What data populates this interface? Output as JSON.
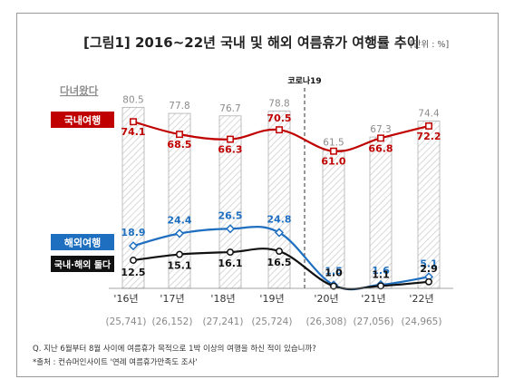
{
  "title": {
    "main": "[그림1] 2016~22년 국내 및 해외 여름휴가 여행률 추이",
    "unit": "[단위 : %]"
  },
  "labels": {
    "covid": "코로나19",
    "visited": "다녀왔다",
    "domestic": "국내여행",
    "overseas": "해외여행",
    "both": "국내·해외 둘다"
  },
  "footnotes": {
    "question": "Q. 지난 6월부터 8월 사이에 여름휴가 목적으로 1박 이상의 여행을 하신 적이 있습니까?",
    "source": "*출처 : 컨슈머인사이트 '연례 여름휴가만족도 조사'"
  },
  "colors": {
    "bar_stroke": "#b0b0b0",
    "bar_hatch": "#c8c8c8",
    "bar_label": "#8c8c8c",
    "domestic": "#c00000",
    "overseas": "#1f6fc0",
    "both": "#111111"
  },
  "chart_data": {
    "type": "bar+line",
    "categories": [
      "'16년",
      "'17년",
      "'18년",
      "'19년",
      "'20년",
      "'21년",
      "'22년"
    ],
    "sample_sizes": [
      "(25,741)",
      "(26,152)",
      "(27,241)",
      "(25,724)",
      "(26,308)",
      "(27,056)",
      "(24,965)"
    ],
    "bars": {
      "name": "다녀왔다",
      "values": [
        80.5,
        77.8,
        76.7,
        78.8,
        61.5,
        67.3,
        74.4
      ]
    },
    "series": [
      {
        "name": "국내여행",
        "values": [
          74.1,
          68.5,
          66.3,
          70.5,
          61.0,
          66.8,
          72.2
        ]
      },
      {
        "name": "해외여행",
        "values": [
          18.9,
          24.4,
          26.5,
          24.8,
          1.5,
          1.6,
          5.1
        ]
      },
      {
        "name": "국내·해외 둘다",
        "values": [
          12.5,
          15.1,
          16.1,
          16.5,
          1.0,
          1.1,
          2.9
        ]
      }
    ],
    "annotation": {
      "text": "코로나19",
      "between": [
        "'19년",
        "'20년"
      ],
      "style": "dashed vertical line"
    },
    "unit": "%",
    "ylim": [
      0,
      85
    ]
  }
}
